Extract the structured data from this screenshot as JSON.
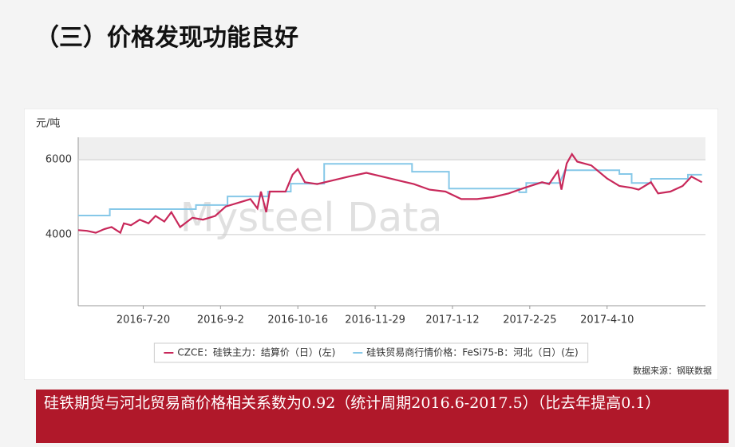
{
  "header": {
    "title": "（三）价格发现功能良好"
  },
  "chart_data": {
    "type": "line",
    "y_unit": "元/吨",
    "watermark": "Mysteel Data",
    "source": "数据来源：钢联数据",
    "xlim": [
      "2016-6-13",
      "2017-6-5"
    ],
    "xticks": [
      "2016-7-20",
      "2016-9-2",
      "2016-10-16",
      "2016-11-29",
      "2017-1-12",
      "2017-2-25",
      "2017-4-10"
    ],
    "ylim": [
      2100,
      6600
    ],
    "yticks": [
      4000,
      6000
    ],
    "grid": true,
    "legend": "bottom",
    "series": [
      {
        "name": "CZCE：硅铁主力：结算价（日）(左)",
        "color": "#c8285a",
        "x": [
          "2016-6-13",
          "2016-6-18",
          "2016-6-23",
          "2016-6-28",
          "2016-7-2",
          "2016-7-7",
          "2016-7-9",
          "2016-7-13",
          "2016-7-18",
          "2016-7-23",
          "2016-7-27",
          "2016-8-1",
          "2016-8-5",
          "2016-8-10",
          "2016-8-17",
          "2016-8-23",
          "2016-8-30",
          "2016-9-5",
          "2016-9-12",
          "2016-9-19",
          "2016-9-23",
          "2016-9-25",
          "2016-9-28",
          "2016-9-30",
          "2016-10-9",
          "2016-10-13",
          "2016-10-16",
          "2016-10-20",
          "2016-10-27",
          "2016-11-5",
          "2016-11-14",
          "2016-11-24",
          "2016-12-3",
          "2016-12-12",
          "2016-12-21",
          "2016-12-30",
          "2017-1-8",
          "2017-1-17",
          "2017-1-26",
          "2017-2-4",
          "2017-2-13",
          "2017-2-22",
          "2017-3-4",
          "2017-3-8",
          "2017-3-13",
          "2017-3-15",
          "2017-3-18",
          "2017-3-21",
          "2017-3-24",
          "2017-4-1",
          "2017-4-10",
          "2017-4-17",
          "2017-4-24",
          "2017-4-28",
          "2017-5-5",
          "2017-5-9",
          "2017-5-16",
          "2017-5-23",
          "2017-5-28",
          "2017-6-3"
        ],
        "values": [
          4120,
          4100,
          4050,
          4150,
          4200,
          4050,
          4300,
          4250,
          4400,
          4300,
          4500,
          4350,
          4600,
          4200,
          4450,
          4400,
          4500,
          4750,
          4850,
          4950,
          4700,
          5150,
          4600,
          5150,
          5150,
          5600,
          5750,
          5400,
          5350,
          5450,
          5550,
          5650,
          5550,
          5450,
          5350,
          5200,
          5150,
          4950,
          4950,
          5000,
          5100,
          5250,
          5400,
          5350,
          5700,
          5200,
          5900,
          6150,
          5950,
          5850,
          5500,
          5300,
          5250,
          5200,
          5400,
          5100,
          5150,
          5300,
          5550,
          5400
        ]
      },
      {
        "name": "硅铁贸易商行情价格：FeSi75-B：河北（日）(左)",
        "color": "#86c8e8",
        "x": [
          "2016-6-13",
          "2016-7-1",
          "2016-7-1",
          "2016-8-19",
          "2016-8-19",
          "2016-9-6",
          "2016-9-6",
          "2016-9-29",
          "2016-9-29",
          "2016-10-12",
          "2016-10-12",
          "2016-10-31",
          "2016-10-31",
          "2016-12-20",
          "2016-12-20",
          "2017-1-10",
          "2017-1-10",
          "2017-2-19",
          "2017-2-19",
          "2017-2-23",
          "2017-2-23",
          "2017-3-14",
          "2017-3-17",
          "2017-4-17",
          "2017-4-17",
          "2017-4-24",
          "2017-4-24",
          "2017-5-5",
          "2017-5-5",
          "2017-5-26",
          "2017-5-26",
          "2017-6-3"
        ],
        "values": [
          4510,
          4510,
          4680,
          4680,
          4790,
          4790,
          5020,
          5020,
          5150,
          5150,
          5360,
          5360,
          5890,
          5890,
          5680,
          5680,
          5230,
          5230,
          5130,
          5130,
          5380,
          5380,
          5720,
          5720,
          5620,
          5620,
          5380,
          5380,
          5490,
          5490,
          5600,
          5600
        ]
      }
    ]
  },
  "note": {
    "text": "硅铁期货与河北贸易商价格相关系数为0.92（统计周期2016.6-2017.5）（比去年提高0.1）"
  }
}
